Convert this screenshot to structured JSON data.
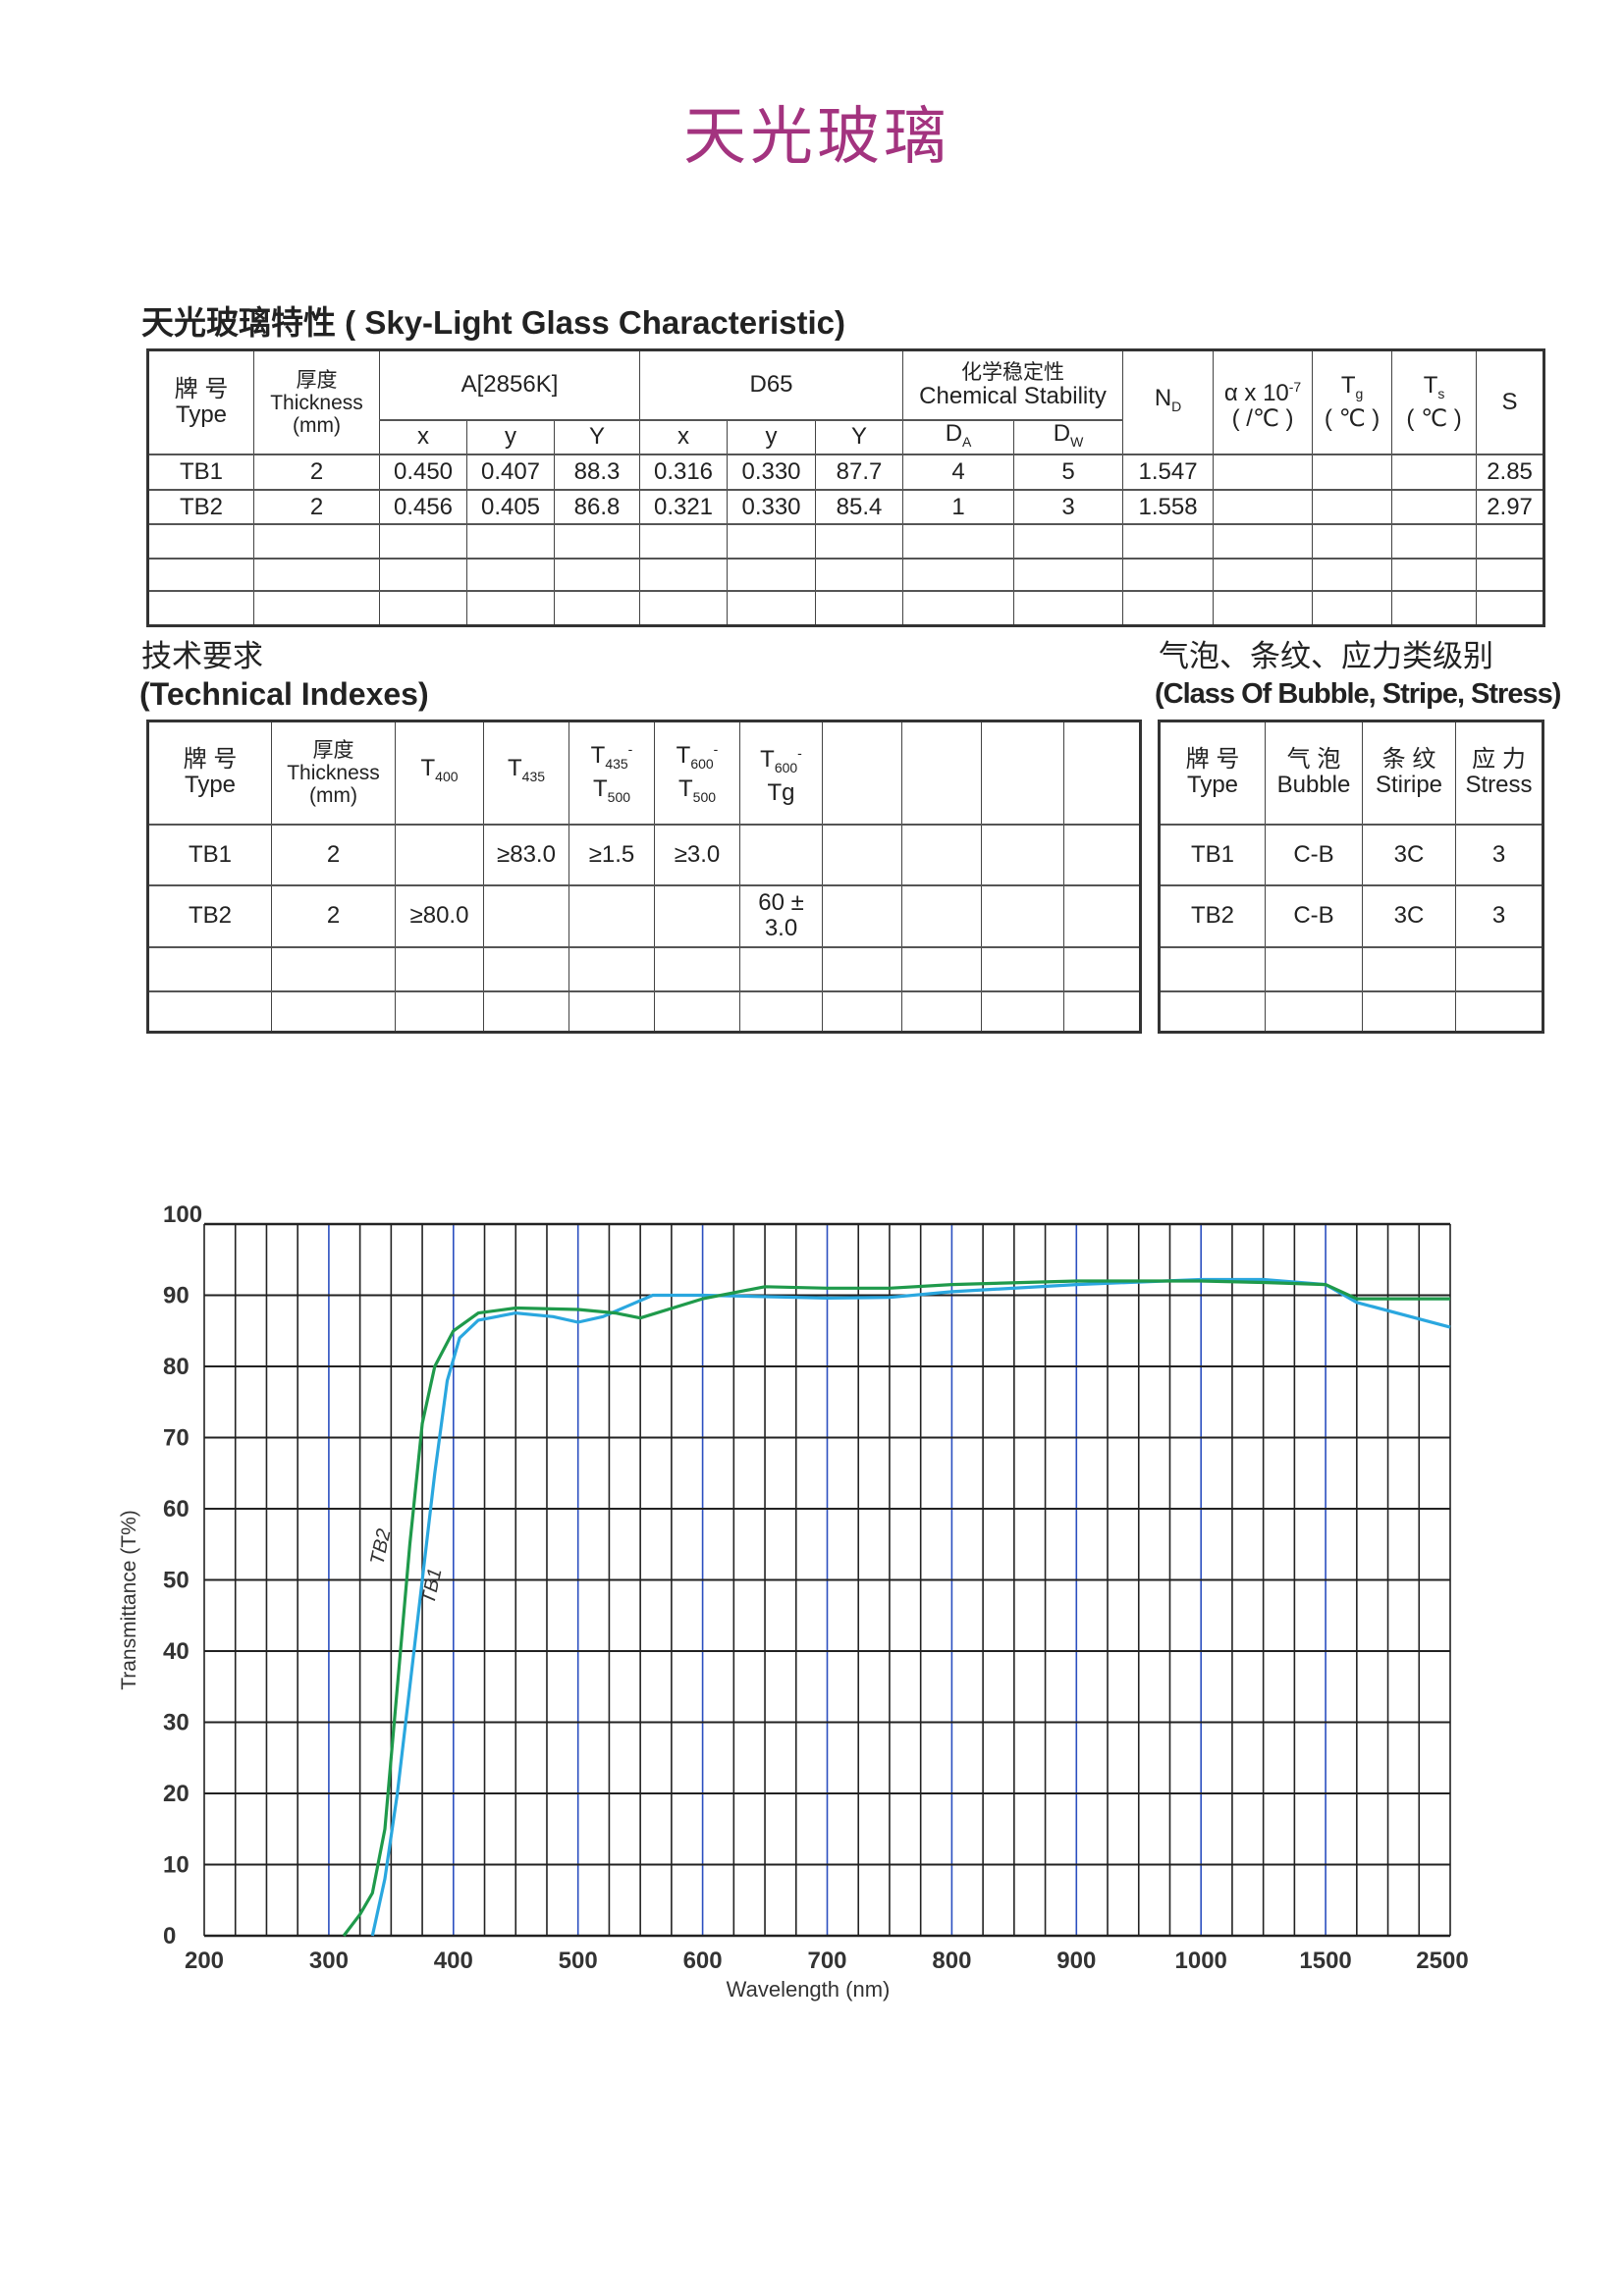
{
  "title": "天光玻璃",
  "table1": {
    "heading": "天光玻璃特性 ( Sky-Light Glass Characteristic)",
    "headers": {
      "type_cn": "牌  号",
      "type_en": "Type",
      "thick_cn": "厚度",
      "thick_en": "Thickness",
      "thick_unit": "(mm)",
      "a2856": "A[2856K]",
      "d65": "D65",
      "chem_cn": "化学稳定性",
      "chem_en": "Chemical Stability",
      "nd": "N",
      "nd_sub": "D",
      "alpha": "α x 10",
      "alpha_sup": "-7",
      "alpha_unit": "( /℃ )",
      "tg": "T",
      "tg_sub": "g",
      "tg_unit": "( ℃ )",
      "ts": "T",
      "ts_sub": "s",
      "ts_unit": "( ℃ )",
      "s": "S",
      "x": "x",
      "y": "y",
      "Y": "Y",
      "da": "D",
      "da_sub": "A",
      "dw": "D",
      "dw_sub": "W"
    },
    "rows": [
      [
        "TB1",
        "2",
        "0.450",
        "0.407",
        "88.3",
        "0.316",
        "0.330",
        "87.7",
        "4",
        "5",
        "1.547",
        "",
        "",
        "",
        "2.85"
      ],
      [
        "TB2",
        "2",
        "0.456",
        "0.405",
        "86.8",
        "0.321",
        "0.330",
        "85.4",
        "1",
        "3",
        "1.558",
        "",
        "",
        "",
        "2.97"
      ]
    ]
  },
  "table2": {
    "heading_cn": "技术要求",
    "heading_en": "(Technical Indexes)",
    "headers": {
      "type_cn": "牌  号",
      "type_en": "Type",
      "thick_cn": "厚度",
      "thick_en": "Thickness",
      "thick_unit": "(mm)",
      "t400": "T",
      "t400_sub": "400",
      "t435": "T",
      "t435_sub": "435",
      "t435_500_top": "T",
      "t435_500_top_sub": "435",
      "t435_500_bot": "T",
      "t435_500_bot_sub": "500",
      "t600_500_top": "T",
      "t600_500_top_sub": "600",
      "t600_500_bot": "T",
      "t600_500_bot_sub": "500",
      "t600_tg_top": "T",
      "t600_tg_top_sub": "600",
      "t600_tg_bot": "Tg",
      "dash": "-"
    },
    "rows": [
      [
        "TB1",
        "2",
        "",
        "≥83.0",
        "≥1.5",
        "≥3.0",
        ""
      ],
      [
        "TB2",
        "2",
        "≥80.0",
        "",
        "",
        "",
        "60 ± 3.0"
      ]
    ]
  },
  "table3": {
    "heading_cn": "气泡、条纹、应力类级别",
    "heading_en": "(Class Of Bubble, Stripe, Stress)",
    "headers": {
      "type_cn": "牌 号",
      "type_en": "Type",
      "bubble_cn": "气 泡",
      "bubble_en": "Bubble",
      "stripe_cn": "条 纹",
      "stripe_en": "Stiripe",
      "stress_cn": "应 力",
      "stress_en": "Stress"
    },
    "rows": [
      [
        "TB1",
        "C-B",
        "3C",
        "3"
      ],
      [
        "TB2",
        "C-B",
        "3C",
        "3"
      ]
    ]
  },
  "chart_data": {
    "type": "line",
    "title": "",
    "xlabel": "Wavelength (nm)",
    "ylabel": "Transmittance (T%)",
    "x_ticks": [
      "200",
      "300",
      "400",
      "500",
      "600",
      "700",
      "800",
      "900",
      "1000",
      "1500",
      "2500"
    ],
    "x_tick_values": [
      200,
      300,
      400,
      500,
      600,
      700,
      800,
      900,
      1000,
      1500,
      2500
    ],
    "x_scale": "piecewise-linear between tick values (equal spacing per tick)",
    "y_ticks": [
      "0",
      "10",
      "20",
      "30",
      "40",
      "50",
      "60",
      "70",
      "80",
      "90",
      "100"
    ],
    "ylim": [
      0,
      100
    ],
    "grid": true,
    "series": [
      {
        "name": "TB1",
        "color": "#2aa7df",
        "points": [
          [
            335,
            0
          ],
          [
            345,
            8
          ],
          [
            355,
            20
          ],
          [
            365,
            35
          ],
          [
            375,
            50
          ],
          [
            385,
            65
          ],
          [
            395,
            78
          ],
          [
            405,
            84
          ],
          [
            420,
            86.5
          ],
          [
            450,
            87.5
          ],
          [
            480,
            87
          ],
          [
            500,
            86.2
          ],
          [
            520,
            87
          ],
          [
            560,
            90
          ],
          [
            600,
            90
          ],
          [
            700,
            89.6
          ],
          [
            750,
            89.7
          ],
          [
            800,
            90.5
          ],
          [
            900,
            91.5
          ],
          [
            1000,
            92.2
          ],
          [
            1250,
            92.2
          ],
          [
            1500,
            91.5
          ],
          [
            1750,
            89
          ],
          [
            2500,
            85.5
          ]
        ]
      },
      {
        "name": "TB2",
        "color": "#1f9a4b",
        "points": [
          [
            312,
            0
          ],
          [
            325,
            3
          ],
          [
            335,
            6
          ],
          [
            345,
            15
          ],
          [
            355,
            35
          ],
          [
            365,
            55
          ],
          [
            375,
            72
          ],
          [
            385,
            80
          ],
          [
            400,
            85
          ],
          [
            420,
            87.5
          ],
          [
            450,
            88.2
          ],
          [
            500,
            88
          ],
          [
            530,
            87.5
          ],
          [
            550,
            86.8
          ],
          [
            600,
            89.5
          ],
          [
            650,
            91.2
          ],
          [
            700,
            91
          ],
          [
            750,
            91
          ],
          [
            800,
            91.5
          ],
          [
            900,
            92
          ],
          [
            1000,
            92
          ],
          [
            1250,
            91.8
          ],
          [
            1500,
            91.5
          ],
          [
            1750,
            89.5
          ],
          [
            2500,
            89.5
          ]
        ]
      }
    ]
  }
}
